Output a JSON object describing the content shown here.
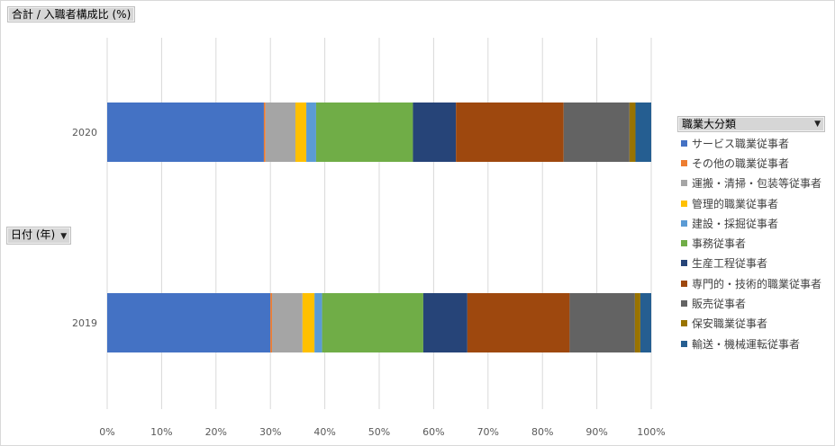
{
  "fields": {
    "value_field_label": "合計 / 入職者構成比 (%)",
    "axis_field_label": "日付 (年)",
    "legend_field_label": "職業大分類",
    "dropdown_icon": "triangle-down-icon"
  },
  "chart_data": {
    "type": "bar",
    "orientation": "horizontal",
    "stacked": "percent",
    "categories": [
      "2020",
      "2019"
    ],
    "x_ticks": [
      "0%",
      "10%",
      "20%",
      "30%",
      "40%",
      "50%",
      "60%",
      "70%",
      "80%",
      "90%",
      "100%"
    ],
    "xlim": [
      0,
      100
    ],
    "grid": true,
    "legend_position": "right",
    "series": [
      {
        "name": "サービス職業従事者",
        "color": "#4472C4",
        "values": [
          28.8,
          30.0
        ]
      },
      {
        "name": "その他の職業従事者",
        "color": "#ED7D31",
        "values": [
          0.3,
          0.3
        ]
      },
      {
        "name": "運搬・清掃・包装等従事者",
        "color": "#A5A5A5",
        "values": [
          5.5,
          5.6
        ]
      },
      {
        "name": "管理的職業従事者",
        "color": "#FFC000",
        "values": [
          2.0,
          2.2
        ]
      },
      {
        "name": "建設・採掘従事者",
        "color": "#5B9BD5",
        "values": [
          1.8,
          1.4
        ]
      },
      {
        "name": "事務従事者",
        "color": "#70AD47",
        "values": [
          17.8,
          18.6
        ]
      },
      {
        "name": "生産工程従事者",
        "color": "#264478",
        "values": [
          7.9,
          8.1
        ]
      },
      {
        "name": "専門的・技術的職業従事者",
        "color": "#9E480E",
        "values": [
          19.8,
          18.8
        ]
      },
      {
        "name": "販売従事者",
        "color": "#636363",
        "values": [
          12.1,
          12.0
        ]
      },
      {
        "name": "保安職業従事者",
        "color": "#997300",
        "values": [
          1.1,
          1.0
        ]
      },
      {
        "name": "輸送・機械運転従事者",
        "color": "#255E91",
        "values": [
          2.9,
          2.0
        ]
      }
    ]
  }
}
